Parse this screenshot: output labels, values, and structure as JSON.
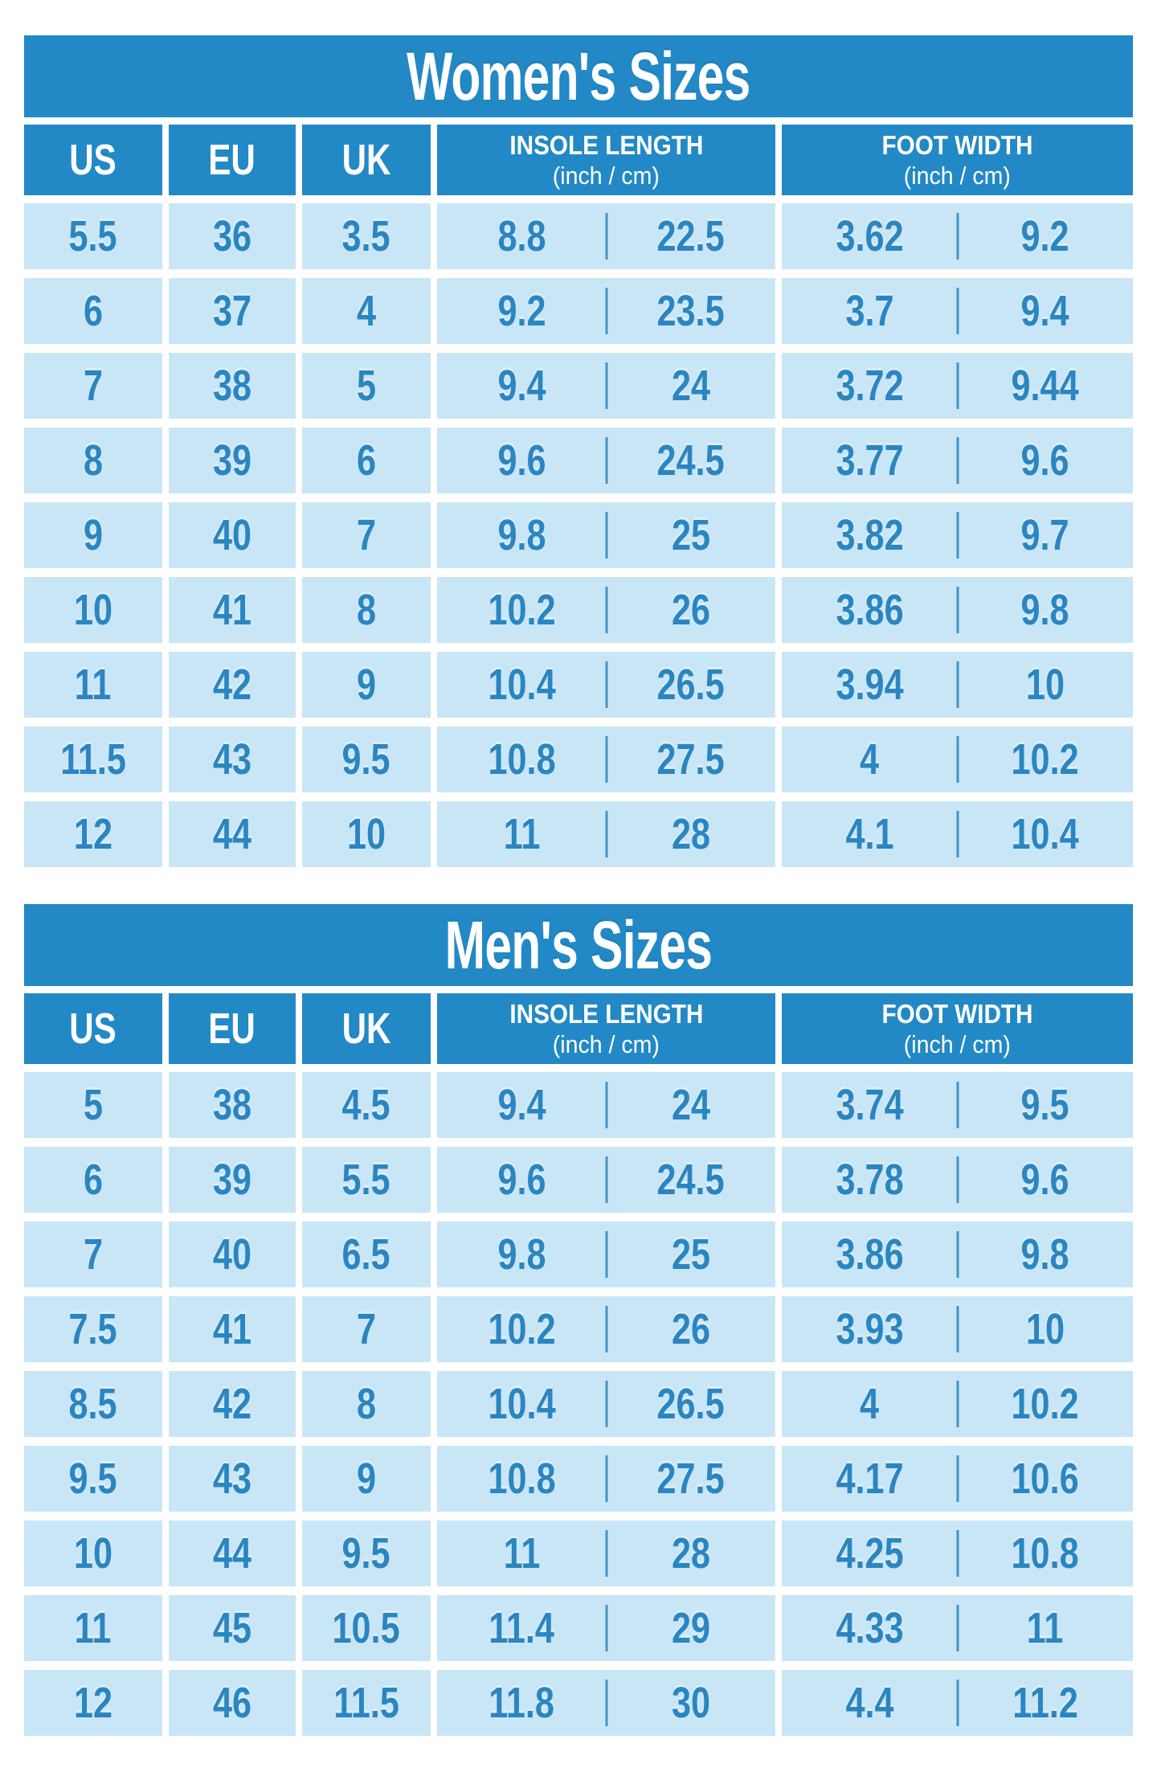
{
  "colors": {
    "header_blue": "#2289c6",
    "cell_blue": "#c9e6f7",
    "text_blue": "#2b85c0",
    "title_text": "#ffffff",
    "page_bg": "#ffffff"
  },
  "chart_data": [
    {
      "type": "table",
      "title": "Women's Sizes",
      "header": {
        "us": "US",
        "eu": "EU",
        "uk": "UK",
        "insole_line1": "INSOLE LENGTH",
        "insole_line2": "(inch / cm)",
        "width_line1": "FOOT WIDTH",
        "width_line2": "(inch / cm)"
      },
      "columns": [
        "US",
        "EU",
        "UK",
        "INSOLE LENGTH (inch / cm)",
        "FOOT WIDTH (inch / cm)"
      ],
      "rows": [
        {
          "us": "5.5",
          "eu": "36",
          "uk": "3.5",
          "insole_inch": "8.8",
          "insole_cm": "22.5",
          "width_inch": "3.62",
          "width_cm": "9.2"
        },
        {
          "us": "6",
          "eu": "37",
          "uk": "4",
          "insole_inch": "9.2",
          "insole_cm": "23.5",
          "width_inch": "3.7",
          "width_cm": "9.4"
        },
        {
          "us": "7",
          "eu": "38",
          "uk": "5",
          "insole_inch": "9.4",
          "insole_cm": "24",
          "width_inch": "3.72",
          "width_cm": "9.44"
        },
        {
          "us": "8",
          "eu": "39",
          "uk": "6",
          "insole_inch": "9.6",
          "insole_cm": "24.5",
          "width_inch": "3.77",
          "width_cm": "9.6"
        },
        {
          "us": "9",
          "eu": "40",
          "uk": "7",
          "insole_inch": "9.8",
          "insole_cm": "25",
          "width_inch": "3.82",
          "width_cm": "9.7"
        },
        {
          "us": "10",
          "eu": "41",
          "uk": "8",
          "insole_inch": "10.2",
          "insole_cm": "26",
          "width_inch": "3.86",
          "width_cm": "9.8"
        },
        {
          "us": "11",
          "eu": "42",
          "uk": "9",
          "insole_inch": "10.4",
          "insole_cm": "26.5",
          "width_inch": "3.94",
          "width_cm": "10"
        },
        {
          "us": "11.5",
          "eu": "43",
          "uk": "9.5",
          "insole_inch": "10.8",
          "insole_cm": "27.5",
          "width_inch": "4",
          "width_cm": "10.2"
        },
        {
          "us": "12",
          "eu": "44",
          "uk": "10",
          "insole_inch": "11",
          "insole_cm": "28",
          "width_inch": "4.1",
          "width_cm": "10.4"
        }
      ]
    },
    {
      "type": "table",
      "title": "Men's Sizes",
      "header": {
        "us": "US",
        "eu": "EU",
        "uk": "UK",
        "insole_line1": "INSOLE LENGTH",
        "insole_line2": "(inch / cm)",
        "width_line1": "FOOT WIDTH",
        "width_line2": "(inch / cm)"
      },
      "columns": [
        "US",
        "EU",
        "UK",
        "INSOLE LENGTH (inch / cm)",
        "FOOT WIDTH (inch / cm)"
      ],
      "rows": [
        {
          "us": "5",
          "eu": "38",
          "uk": "4.5",
          "insole_inch": "9.4",
          "insole_cm": "24",
          "width_inch": "3.74",
          "width_cm": "9.5"
        },
        {
          "us": "6",
          "eu": "39",
          "uk": "5.5",
          "insole_inch": "9.6",
          "insole_cm": "24.5",
          "width_inch": "3.78",
          "width_cm": "9.6"
        },
        {
          "us": "7",
          "eu": "40",
          "uk": "6.5",
          "insole_inch": "9.8",
          "insole_cm": "25",
          "width_inch": "3.86",
          "width_cm": "9.8"
        },
        {
          "us": "7.5",
          "eu": "41",
          "uk": "7",
          "insole_inch": "10.2",
          "insole_cm": "26",
          "width_inch": "3.93",
          "width_cm": "10"
        },
        {
          "us": "8.5",
          "eu": "42",
          "uk": "8",
          "insole_inch": "10.4",
          "insole_cm": "26.5",
          "width_inch": "4",
          "width_cm": "10.2"
        },
        {
          "us": "9.5",
          "eu": "43",
          "uk": "9",
          "insole_inch": "10.8",
          "insole_cm": "27.5",
          "width_inch": "4.17",
          "width_cm": "10.6"
        },
        {
          "us": "10",
          "eu": "44",
          "uk": "9.5",
          "insole_inch": "11",
          "insole_cm": "28",
          "width_inch": "4.25",
          "width_cm": "10.8"
        },
        {
          "us": "11",
          "eu": "45",
          "uk": "10.5",
          "insole_inch": "11.4",
          "insole_cm": "29",
          "width_inch": "4.33",
          "width_cm": "11"
        },
        {
          "us": "12",
          "eu": "46",
          "uk": "11.5",
          "insole_inch": "11.8",
          "insole_cm": "30",
          "width_inch": "4.4",
          "width_cm": "11.2"
        }
      ]
    }
  ]
}
